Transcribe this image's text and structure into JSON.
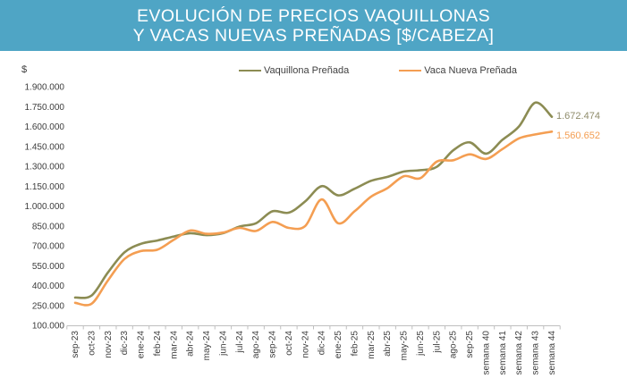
{
  "banner": {
    "title_line1": "EVOLUCIÓN DE PRECIOS VAQUILLONAS",
    "title_line2": "Y VACAS NUEVAS PREÑADAS [$/CABEZA]",
    "bg_color": "#4FA5C5",
    "text_color": "#FFFFFF"
  },
  "chart_data": {
    "type": "line",
    "title": "EVOLUCIÓN DE PRECIOS VAQUILLONAS Y VACAS NUEVAS PREÑADAS [$/CABEZA]",
    "unit_label": "$",
    "smoothed": true,
    "grid": false,
    "legend_position": "top-center",
    "categories": [
      "sep-23",
      "oct-23",
      "nov-23",
      "dic-23",
      "ene-24",
      "feb-24",
      "mar-24",
      "abr-24",
      "may-24",
      "jun-24",
      "jul-24",
      "ago-24",
      "sep-24",
      "oct-24",
      "nov-24",
      "dic-24",
      "ene-25",
      "feb-25",
      "mar-25",
      "abr-25",
      "may-25",
      "jun-25",
      "jul-25",
      "ago-25",
      "sep-25",
      "semana 40",
      "semana 41",
      "semana 42",
      "semana 43",
      "semana 44"
    ],
    "y_axis": {
      "min": 100000,
      "max": 1900000,
      "step": 150000,
      "tick_labels": [
        "100.000",
        "250.000",
        "400.000",
        "550.000",
        "700.000",
        "850.000",
        "1.000.000",
        "1.150.000",
        "1.300.000",
        "1.450.000",
        "1.600.000",
        "1.750.000",
        "1.900.000"
      ],
      "axis_color": "#BFBFBF",
      "label_color": "#3d3d3d"
    },
    "series": [
      {
        "name": "Vaquillona Preñada",
        "color": "#8C8C53",
        "label_color": "#8F8C6B",
        "end_label": "1.672.474",
        "values": [
          310000,
          325000,
          500000,
          650000,
          715000,
          740000,
          770000,
          795000,
          780000,
          795000,
          845000,
          870000,
          960000,
          950000,
          1035000,
          1150000,
          1080000,
          1130000,
          1190000,
          1220000,
          1260000,
          1270000,
          1295000,
          1420000,
          1480000,
          1395000,
          1500000,
          1600000,
          1780000,
          1672474
        ]
      },
      {
        "name": "Vaca Nueva Preñada",
        "color": "#F49E52",
        "label_color": "#F49E52",
        "end_label": "1.560.652",
        "values": [
          270000,
          263000,
          440000,
          600000,
          660000,
          670000,
          745000,
          815000,
          790000,
          800000,
          835000,
          812000,
          880000,
          835000,
          850000,
          1050000,
          870000,
          960000,
          1070000,
          1135000,
          1225000,
          1210000,
          1335000,
          1345000,
          1390000,
          1355000,
          1430000,
          1510000,
          1540000,
          1560652
        ]
      }
    ]
  }
}
